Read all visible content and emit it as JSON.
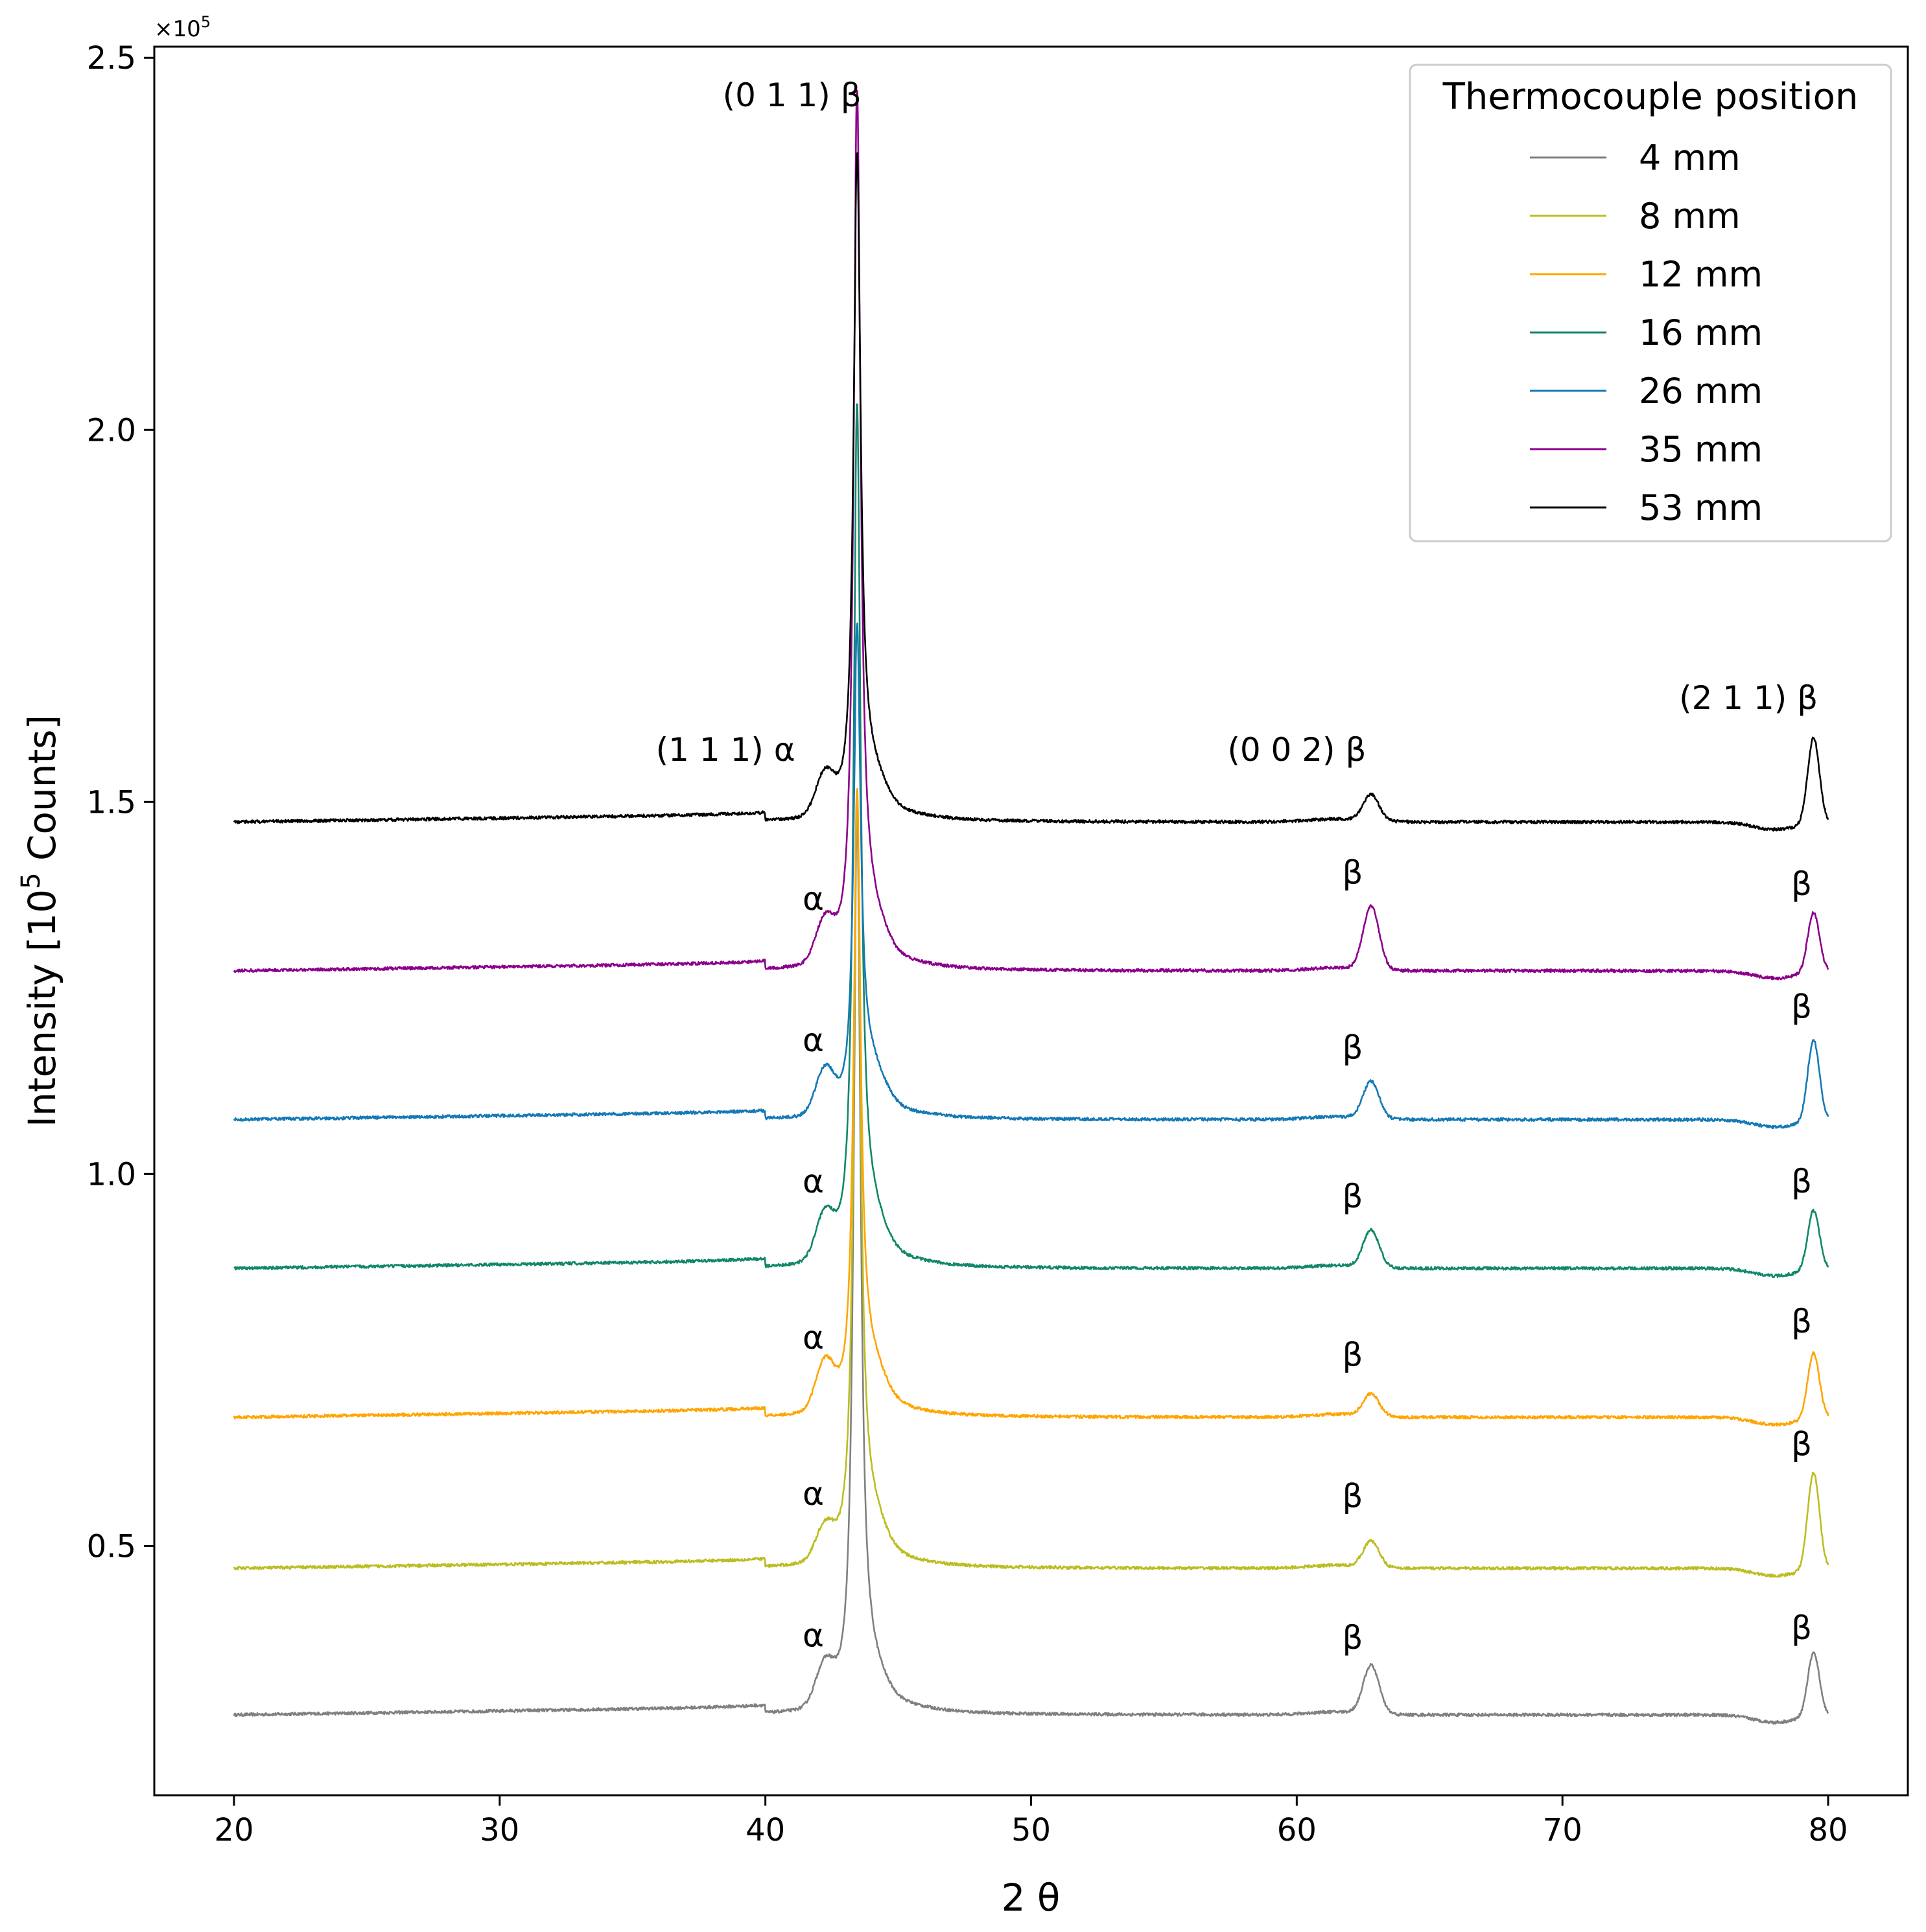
{
  "chart_data": {
    "type": "line",
    "xlabel": "2 θ",
    "ylabel": "Intensity [10",
    "ylabel_sup": "5",
    "ylabel_tail": " Counts]",
    "offset_label": "×10",
    "offset_sup": "5",
    "xlim": [
      17,
      83
    ],
    "ylim": [
      0.165,
      2.515
    ],
    "xticks": [
      20,
      30,
      40,
      50,
      60,
      70,
      80
    ],
    "xtick_labels": [
      "20",
      "30",
      "40",
      "50",
      "60",
      "70",
      "80"
    ],
    "yticks": [
      0.5,
      1.0,
      1.5,
      2.0,
      2.5
    ],
    "ytick_labels": [
      "0.5",
      "1.0",
      "1.5",
      "2.0",
      "2.5"
    ],
    "legend": {
      "title": "Thermocouple position",
      "position": "top-right"
    },
    "series": [
      {
        "name": "4 mm",
        "color": "#808080",
        "baseline": 0.273,
        "a111": 0.055,
        "p011": 1.18,
        "p002": 0.065,
        "p211": 0.085,
        "tail": 0.042
      },
      {
        "name": "8 mm",
        "color": "#bcbd22",
        "baseline": 0.47,
        "a111": 0.045,
        "p011": 1.0,
        "p002": 0.035,
        "p211": 0.13,
        "tail": 0.055
      },
      {
        "name": "12 mm",
        "color": "#ffa500",
        "baseline": 0.673,
        "a111": 0.065,
        "p011": 0.8,
        "p002": 0.03,
        "p211": 0.088,
        "tail": 0.058
      },
      {
        "name": "16 mm",
        "color": "#12876a",
        "baseline": 0.873,
        "a111": 0.06,
        "p011": 1.12,
        "p002": 0.05,
        "p211": 0.08,
        "tail": 0.055
      },
      {
        "name": "26 mm",
        "color": "#1579b5",
        "baseline": 1.073,
        "a111": 0.06,
        "p011": 0.62,
        "p002": 0.05,
        "p211": 0.108,
        "tail": 0.058
      },
      {
        "name": "35 mm",
        "color": "#8b008b",
        "baseline": 1.273,
        "a111": 0.055,
        "p011": 1.14,
        "p002": 0.085,
        "p211": 0.08,
        "tail": 0.058
      },
      {
        "name": "53 mm",
        "color": "#000000",
        "baseline": 1.473,
        "a111": 0.055,
        "p011": 0.86,
        "p002": 0.035,
        "p211": 0.115,
        "tail": 0.052
      }
    ],
    "annotations": [
      {
        "id": "peak-011-label",
        "text": "(0 1 1) β",
        "x": 41.0,
        "y": 2.435
      },
      {
        "id": "peak-111-label",
        "text": "(1 1 1) α",
        "x": 38.5,
        "y": 1.555
      },
      {
        "id": "peak-002-label",
        "text": "(0 0 2) β",
        "x": 60.0,
        "y": 1.555
      },
      {
        "id": "peak-211-label",
        "text": "(2 1 1) β",
        "x": 77.0,
        "y": 1.625
      },
      {
        "id": "alpha-35",
        "text": "α",
        "x": 41.8,
        "y": 1.355
      },
      {
        "id": "beta-002-35",
        "text": "β",
        "x": 62.1,
        "y": 1.39
      },
      {
        "id": "beta-211-35",
        "text": "β",
        "x": 79.0,
        "y": 1.375
      },
      {
        "id": "alpha-26",
        "text": "α",
        "x": 41.8,
        "y": 1.165
      },
      {
        "id": "beta-002-26",
        "text": "β",
        "x": 62.1,
        "y": 1.155
      },
      {
        "id": "beta-211-26",
        "text": "β",
        "x": 79.0,
        "y": 1.21
      },
      {
        "id": "alpha-16",
        "text": "α",
        "x": 41.8,
        "y": 0.975
      },
      {
        "id": "beta-002-16",
        "text": "β",
        "x": 62.1,
        "y": 0.955
      },
      {
        "id": "beta-211-16",
        "text": "β",
        "x": 79.0,
        "y": 0.975
      },
      {
        "id": "alpha-12",
        "text": "α",
        "x": 41.8,
        "y": 0.765
      },
      {
        "id": "beta-002-12",
        "text": "β",
        "x": 62.1,
        "y": 0.742
      },
      {
        "id": "beta-211-12",
        "text": "β",
        "x": 79.0,
        "y": 0.787
      },
      {
        "id": "alpha-8",
        "text": "α",
        "x": 41.8,
        "y": 0.555
      },
      {
        "id": "beta-002-8",
        "text": "β",
        "x": 62.1,
        "y": 0.552
      },
      {
        "id": "beta-211-8",
        "text": "β",
        "x": 79.0,
        "y": 0.622
      },
      {
        "id": "alpha-4",
        "text": "α",
        "x": 41.8,
        "y": 0.365
      },
      {
        "id": "beta-002-4",
        "text": "β",
        "x": 62.1,
        "y": 0.362
      },
      {
        "id": "beta-211-4",
        "text": "β",
        "x": 79.0,
        "y": 0.375
      }
    ]
  }
}
